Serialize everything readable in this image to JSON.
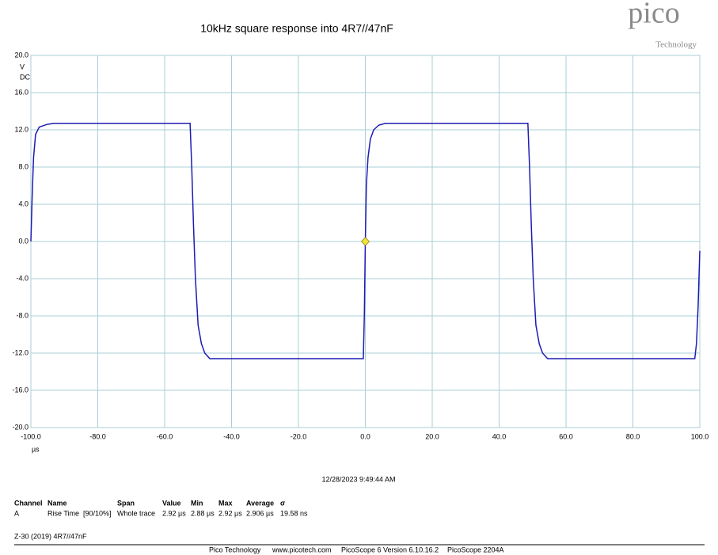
{
  "chart_data": {
    "type": "line",
    "title": "10kHz square response into 4R7//47nF",
    "y_label": "V",
    "y_coupling": "DC",
    "x_label": "µs",
    "x": [
      -100,
      -99.6,
      -99.2,
      -98.6,
      -97.5,
      -95,
      -93,
      -52.4,
      -51.9,
      -51.4,
      -50.8,
      -50,
      -49,
      -48,
      -46.5,
      -0.6,
      -0.3,
      0,
      0.3,
      0.8,
      1.5,
      2.5,
      4,
      6,
      48.6,
      49.1,
      49.6,
      50.2,
      51,
      52,
      53,
      54.5,
      98.5,
      99,
      99.5,
      100
    ],
    "series": [
      {
        "name": "A",
        "color": "#1c1cb4",
        "values": [
          0,
          5,
          9,
          11.5,
          12.3,
          12.6,
          12.7,
          12.7,
          8,
          2,
          -4,
          -9,
          -11,
          -12,
          -12.6,
          -12.6,
          -8,
          0,
          6,
          9,
          11,
          12,
          12.5,
          12.7,
          12.7,
          8,
          2,
          -4,
          -9,
          -11,
          -12,
          -12.6,
          -12.6,
          -11,
          -7,
          -1
        ]
      }
    ],
    "trigger": {
      "x": 0,
      "y": 0
    },
    "xlim": [
      -100,
      100
    ],
    "xticks": [
      {
        "value": -100,
        "label": "-100.0"
      },
      {
        "value": -80,
        "label": "-80.0"
      },
      {
        "value": -60,
        "label": "-60.0"
      },
      {
        "value": -40,
        "label": "-40.0"
      },
      {
        "value": -20,
        "label": "-20.0"
      },
      {
        "value": 0,
        "label": "0.0"
      },
      {
        "value": 20,
        "label": "20.0"
      },
      {
        "value": 40,
        "label": "40.0"
      },
      {
        "value": 60,
        "label": "60.0"
      },
      {
        "value": 80,
        "label": "80.0"
      },
      {
        "value": 100,
        "label": "100.0"
      }
    ],
    "ylim": [
      -20,
      20
    ],
    "yticks": [
      {
        "value": 20,
        "label": "20.0"
      },
      {
        "value": 16,
        "label": "16.0"
      },
      {
        "value": 12,
        "label": "12.0"
      },
      {
        "value": 8,
        "label": "8.0"
      },
      {
        "value": 4,
        "label": "4.0"
      },
      {
        "value": 0,
        "label": "0.0"
      },
      {
        "value": -4,
        "label": "-4.0"
      },
      {
        "value": -8,
        "label": "-8.0"
      },
      {
        "value": -12,
        "label": "-12.0"
      },
      {
        "value": -16,
        "label": "-16.0"
      },
      {
        "value": -20,
        "label": "-20.0"
      }
    ],
    "grid": true
  },
  "logo": {
    "name": "pico",
    "sub": "Technology"
  },
  "timestamp": "12/28/2023 9:49:44 AM",
  "measurements": {
    "headers": [
      "Channel",
      "Name",
      "Span",
      "Value",
      "Min",
      "Max",
      "Average",
      "σ"
    ],
    "rows": [
      [
        "A",
        "Rise Time  [90/10%]",
        "Whole trace",
        "2.92 µs",
        "2.88 µs",
        "2.92 µs",
        "2.906 µs",
        "19.58 ns"
      ]
    ]
  },
  "note": "Z-30 (2019) 4R7//47nF",
  "footer": [
    "Pico Technology",
    "www.picotech.com",
    "PicoScope 6 Version 6.10.16.2",
    "PicoScope 2204A"
  ]
}
